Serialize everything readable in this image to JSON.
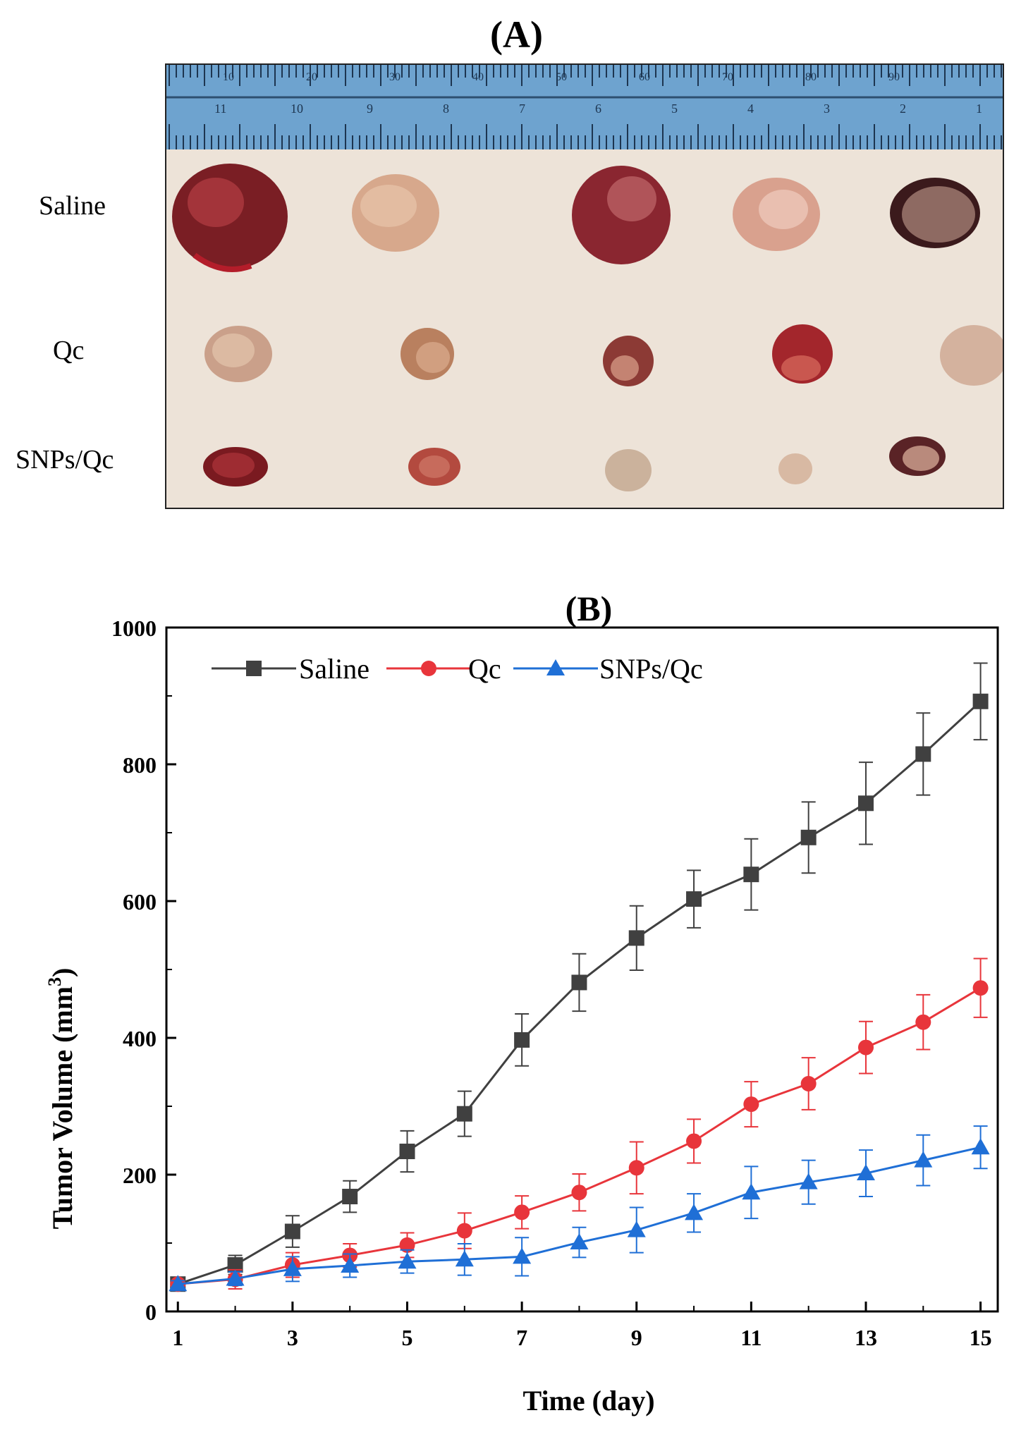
{
  "panel_a": {
    "label": "(A)",
    "row_labels": [
      "Saline",
      "Qc",
      "SNPs/Qc"
    ],
    "ruler_top_numbers": [
      "10",
      "20",
      "30",
      "40",
      "50",
      "60",
      "70",
      "80",
      "90"
    ],
    "ruler_bottom_numbers": [
      "11",
      "10",
      "9",
      "8",
      "7",
      "6",
      "5",
      "4",
      "3",
      "2",
      "1"
    ]
  },
  "colors": {
    "saline": "#404040",
    "qc": "#e8353b",
    "snps_qc": "#1f6fd6",
    "ruler": "#6ea3cf"
  },
  "chart_data": {
    "type": "line",
    "title": "(B)",
    "xlabel": "Time (day)",
    "ylabel": "Tumor Volume (mm",
    "ylabel_superscript": "3",
    "ylabel_close": ")",
    "xlim": [
      0.8,
      15.3
    ],
    "ylim": [
      0,
      1000
    ],
    "xticks": [
      1,
      3,
      5,
      7,
      9,
      11,
      13,
      15
    ],
    "yticks": [
      0,
      200,
      400,
      600,
      800,
      1000
    ],
    "grid": false,
    "legend_position": "top-left",
    "x": [
      1,
      2,
      3,
      4,
      5,
      6,
      7,
      8,
      9,
      10,
      11,
      12,
      13,
      14,
      15
    ],
    "series": [
      {
        "name": "Saline",
        "marker": "square",
        "values": [
          40,
          68,
          117,
          168,
          234,
          289,
          397,
          481,
          546,
          603,
          639,
          693,
          743,
          815,
          892
        ],
        "errors": [
          5,
          14,
          23,
          23,
          30,
          33,
          38,
          42,
          47,
          42,
          52,
          52,
          60,
          60,
          56
        ]
      },
      {
        "name": "Qc",
        "marker": "circle",
        "values": [
          40,
          47,
          68,
          82,
          97,
          118,
          145,
          174,
          210,
          249,
          303,
          333,
          386,
          423,
          473
        ],
        "errors": [
          5,
          14,
          18,
          17,
          18,
          26,
          24,
          27,
          38,
          32,
          33,
          38,
          38,
          40,
          43
        ]
      },
      {
        "name": "SNPs/Qc",
        "marker": "triangle",
        "values": [
          40,
          48,
          62,
          67,
          73,
          76,
          80,
          101,
          119,
          144,
          174,
          189,
          202,
          221,
          240
        ],
        "errors": [
          5,
          10,
          18,
          17,
          17,
          23,
          28,
          22,
          33,
          28,
          38,
          32,
          34,
          37,
          31
        ]
      }
    ]
  }
}
